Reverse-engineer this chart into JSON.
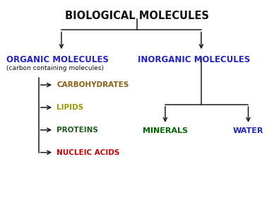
{
  "title": "BIOLOGICAL MOLECULES",
  "title_color": "#111111",
  "title_fontsize": 10.5,
  "title_weight": "bold",
  "bg_color": "#ffffff",
  "organic_label": "ORGANIC MOLECULES",
  "organic_color": "#2222cc",
  "organic_sub": "(carbon containing molecules)",
  "organic_sub_color": "#111111",
  "organic_sub_fontsize": 6.5,
  "inorganic_label": "INORGANIC MOLECULES",
  "inorganic_color": "#2222cc",
  "sub_items": [
    {
      "label": "CARBOHYDRATES",
      "color": "#8B5E10"
    },
    {
      "label": "LIPIDS",
      "color": "#999900"
    },
    {
      "label": "PROTEINS",
      "color": "#1a5c1a"
    },
    {
      "label": "NUCLEIC ACIDS",
      "color": "#cc0000"
    }
  ],
  "minerals_label": "MINERALS",
  "minerals_color": "#006600",
  "water_label": "WATER",
  "water_color": "#2222cc",
  "arrow_color": "#1a1a1a",
  "line_color": "#1a1a1a",
  "lw": 1.1,
  "fig_w": 3.95,
  "fig_h": 2.8,
  "dpi": 100
}
